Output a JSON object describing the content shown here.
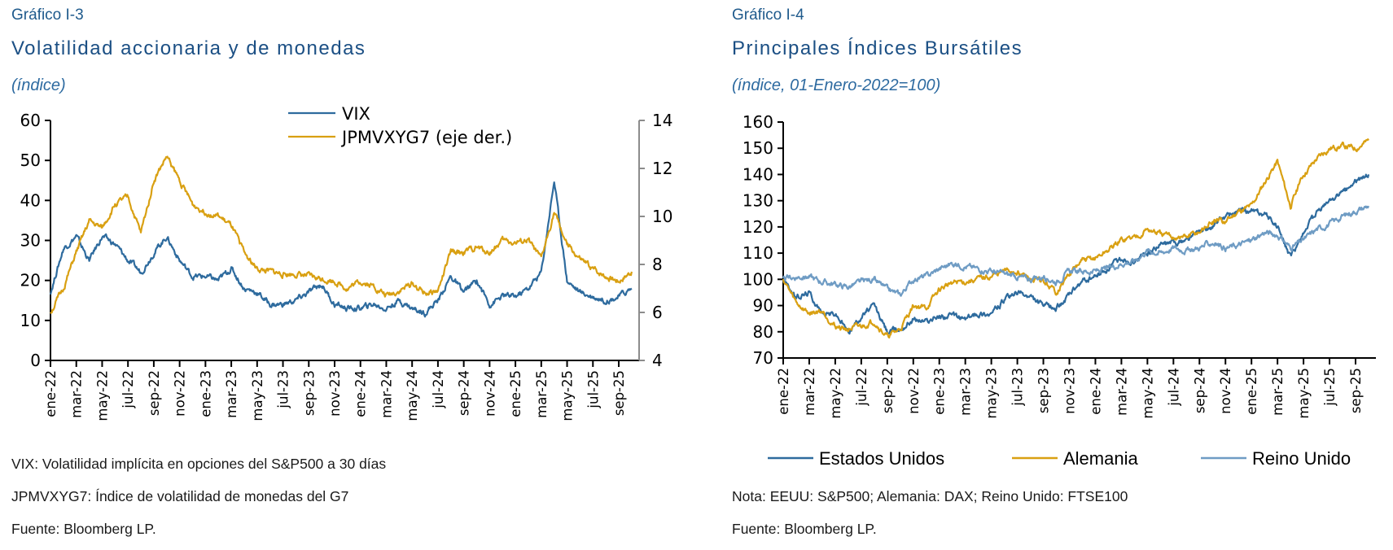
{
  "panel1": {
    "number": "Gráfico I-3",
    "title": "Volatilidad accionaria y de monedas",
    "subtitle": "(índice)",
    "notes": [
      "VIX: Volatilidad implícita en opciones del S&P500 a 30 días",
      "JPMVXYG7: Índice de volatilidad de monedas del G7",
      "Fuente: Bloomberg LP."
    ]
  },
  "panel2": {
    "number": "Gráfico I-4",
    "title": "Principales Índices Bursátiles",
    "subtitle": "(índice, 01-Enero-2022=100)",
    "notes": [
      "Nota: EEUU: S&P500; Alemania: DAX; Reino Unido: FTSE100",
      "Fuente: Bloomberg LP."
    ]
  },
  "chart_data": [
    {
      "type": "line",
      "title": "Volatilidad accionaria y de monedas",
      "xlabel": "",
      "ylabel": "(índice)",
      "ylim": [
        0,
        60
      ],
      "y2lim": [
        4,
        14
      ],
      "yticks": [
        0,
        10,
        20,
        30,
        40,
        50,
        60
      ],
      "y2ticks": [
        4,
        6,
        8,
        10,
        12,
        14
      ],
      "grid": false,
      "legend_position": "top-center",
      "x_ticks": [
        "ene-22",
        "mar-22",
        "may-22",
        "jul-22",
        "sep-22",
        "nov-22",
        "ene-23",
        "mar-23",
        "may-23",
        "jul-23",
        "sep-23",
        "nov-23",
        "ene-24",
        "mar-24",
        "may-24",
        "jul-24",
        "sep-24",
        "nov-24",
        "ene-25",
        "mar-25",
        "may-25",
        "jul-25",
        "sep-25"
      ],
      "x": [
        "2022-01",
        "2022-02",
        "2022-03",
        "2022-04",
        "2022-05",
        "2022-06",
        "2022-07",
        "2022-08",
        "2022-09",
        "2022-10",
        "2022-11",
        "2022-12",
        "2023-01",
        "2023-02",
        "2023-03",
        "2023-04",
        "2023-05",
        "2023-06",
        "2023-07",
        "2023-08",
        "2023-09",
        "2023-10",
        "2023-11",
        "2023-12",
        "2024-01",
        "2024-02",
        "2024-03",
        "2024-04",
        "2024-05",
        "2024-06",
        "2024-07",
        "2024-08",
        "2024-09",
        "2024-10",
        "2024-11",
        "2024-12",
        "2025-01",
        "2025-02",
        "2025-03",
        "2025-04",
        "2025-05",
        "2025-06",
        "2025-07",
        "2025-08",
        "2025-09",
        "2025-10"
      ],
      "series": [
        {
          "name": "VIX",
          "axis": "left",
          "color": "#2e6b9e",
          "values": [
            17,
            28,
            31,
            25,
            31,
            29,
            25,
            22,
            27,
            31,
            25,
            21,
            21,
            20,
            23,
            18,
            17,
            14,
            14,
            15,
            17,
            19,
            14,
            13,
            13,
            14,
            13,
            15,
            13,
            12,
            15,
            21,
            17,
            20,
            14,
            16,
            16,
            18,
            22,
            45,
            20,
            17,
            16,
            15,
            16,
            18
          ]
        },
        {
          "name": "JPMVXYG7 (eje der.)",
          "axis": "right",
          "color": "#d9a012",
          "values": [
            6.0,
            7.0,
            8.5,
            9.8,
            9.5,
            10.5,
            10.8,
            9.3,
            11.5,
            12.5,
            11.5,
            10.5,
            10.2,
            10.0,
            9.6,
            8.5,
            7.8,
            7.7,
            7.6,
            7.6,
            7.5,
            7.4,
            7.3,
            7.0,
            7.3,
            7.1,
            6.7,
            6.9,
            7.2,
            6.8,
            6.9,
            8.5,
            8.5,
            8.7,
            8.5,
            9.0,
            8.9,
            9.0,
            8.2,
            10.2,
            8.8,
            8.2,
            7.8,
            7.5,
            7.3,
            7.7
          ]
        }
      ]
    },
    {
      "type": "line",
      "title": "Principales Índices Bursátiles",
      "xlabel": "",
      "ylabel": "(índice, 01-Enero-2022=100)",
      "ylim": [
        70,
        160
      ],
      "yticks": [
        70,
        80,
        90,
        100,
        110,
        120,
        130,
        140,
        150,
        160
      ],
      "grid": false,
      "legend_position": "bottom",
      "x_ticks": [
        "ene-22",
        "mar-22",
        "may-22",
        "jul-22",
        "sep-22",
        "nov-22",
        "ene-23",
        "mar-23",
        "may-23",
        "jul-23",
        "sep-23",
        "nov-23",
        "ene-24",
        "mar-24",
        "may-24",
        "jul-24",
        "sep-24",
        "nov-24",
        "ene-25",
        "mar-25",
        "may-25",
        "jul-25",
        "sep-25"
      ],
      "x": [
        "2022-01",
        "2022-02",
        "2022-03",
        "2022-04",
        "2022-05",
        "2022-06",
        "2022-07",
        "2022-08",
        "2022-09",
        "2022-10",
        "2022-11",
        "2022-12",
        "2023-01",
        "2023-02",
        "2023-03",
        "2023-04",
        "2023-05",
        "2023-06",
        "2023-07",
        "2023-08",
        "2023-09",
        "2023-10",
        "2023-11",
        "2023-12",
        "2024-01",
        "2024-02",
        "2024-03",
        "2024-04",
        "2024-05",
        "2024-06",
        "2024-07",
        "2024-08",
        "2024-09",
        "2024-10",
        "2024-11",
        "2024-12",
        "2025-01",
        "2025-02",
        "2025-03",
        "2025-04",
        "2025-05",
        "2025-06",
        "2025-07",
        "2025-08",
        "2025-09",
        "2025-10"
      ],
      "series": [
        {
          "name": "Estados Unidos",
          "color": "#2e6b9e",
          "values": [
            100,
            93,
            95,
            87,
            87,
            80,
            86,
            90,
            80,
            81,
            85,
            84,
            86,
            86,
            85,
            87,
            87,
            92,
            95,
            93,
            90,
            89,
            94,
            99,
            101,
            104,
            108,
            107,
            110,
            113,
            114,
            115,
            118,
            120,
            124,
            126,
            126,
            125,
            120,
            108,
            118,
            125,
            130,
            133,
            137,
            140
          ]
        },
        {
          "name": "Alemania",
          "color": "#d9a012",
          "values": [
            100,
            91,
            87,
            88,
            82,
            81,
            82,
            84,
            78,
            81,
            90,
            89,
            96,
            99,
            99,
            100,
            101,
            103,
            103,
            100,
            99,
            95,
            102,
            107,
            108,
            111,
            115,
            116,
            119,
            117,
            116,
            116,
            118,
            122,
            122,
            126,
            128,
            137,
            145,
            128,
            140,
            146,
            150,
            151,
            150,
            153
          ]
        },
        {
          "name": "Reino Unido",
          "color": "#6f9cc4",
          "values": [
            100,
            101,
            101,
            99,
            98,
            97,
            99,
            100,
            96,
            94,
            100,
            101,
            104,
            106,
            105,
            104,
            103,
            102,
            101,
            100,
            101,
            99,
            103,
            103,
            103,
            104,
            106,
            107,
            111,
            110,
            112,
            111,
            112,
            114,
            112,
            113,
            115,
            118,
            117,
            112,
            115,
            119,
            121,
            124,
            126,
            128
          ]
        }
      ]
    }
  ]
}
